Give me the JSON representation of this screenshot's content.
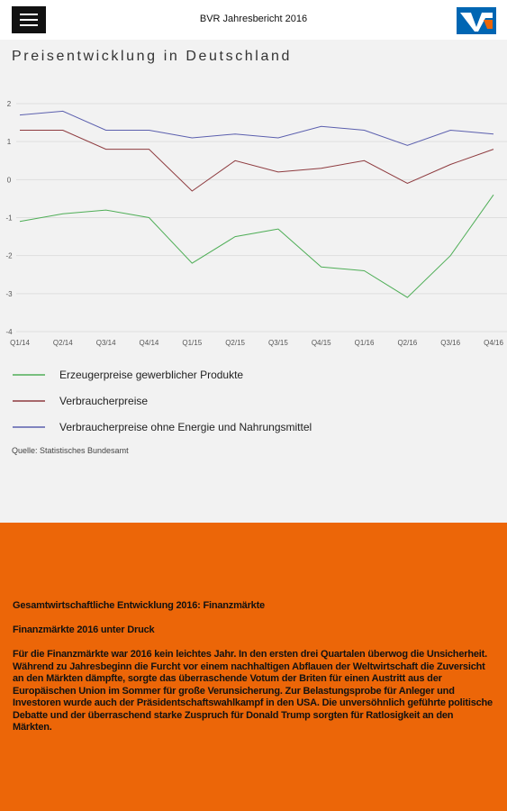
{
  "header": {
    "title": "BVR Jahresbericht 2016"
  },
  "chart_data": {
    "type": "line",
    "title": "Preisentwicklung in Deutschland",
    "categories": [
      "Q1/14",
      "Q2/14",
      "Q3/14",
      "Q4/14",
      "Q1/15",
      "Q2/15",
      "Q3/15",
      "Q4/15",
      "Q1/16",
      "Q2/16",
      "Q3/16",
      "Q4/16"
    ],
    "series": [
      {
        "name": "Erzeugerpreise gewerblicher Produkte",
        "color": "#4fae57",
        "values": [
          -1.1,
          -0.9,
          -0.8,
          -1.0,
          -2.2,
          -1.5,
          -1.3,
          -2.3,
          -2.4,
          -3.1,
          -2.0,
          -0.4
        ]
      },
      {
        "name": "Verbraucherpreise",
        "color": "#8e3b3f",
        "values": [
          1.3,
          1.3,
          0.8,
          0.8,
          -0.3,
          0.5,
          0.2,
          0.3,
          0.5,
          -0.1,
          0.4,
          0.8
        ]
      },
      {
        "name": "Verbraucherpreise ohne Energie und Nahrungsmittel",
        "color": "#5b5fae",
        "values": [
          1.7,
          1.8,
          1.3,
          1.3,
          1.1,
          1.2,
          1.1,
          1.4,
          1.3,
          0.9,
          1.3,
          1.2
        ]
      }
    ],
    "ylim": [
      -4,
      2
    ],
    "yticks": [
      -4,
      -3,
      -2,
      -1,
      0,
      1,
      2
    ],
    "grid": true,
    "source": "Quelle: Statistisches Bundesamt"
  },
  "article": {
    "heading": "Gesamtwirtschaftliche Entwicklung 2016: Finanzmärkte",
    "subheading": "Finanzmärkte 2016 unter Druck",
    "body": "Für die Finanzmärkte war 2016 kein leichtes Jahr. In den ersten drei Quartalen überwog die Unsicherheit. Während zu Jahresbeginn die Furcht vor einem nachhaltigen Abflauen der Weltwirtschaft die Zuversicht an den Märkten dämpfte, sorgte das überraschende Votum der Briten für einen Austritt aus der Europäischen Union im Sommer für große Verunsicherung. Zur Belastungsprobe für Anleger und Investoren wurde auch der Präsidentschaftswahlkampf in den USA. Die unversöhnlich geführte politische Debatte und der überraschend starke Zuspruch für Donald Trump sorgten für Ratlosigkeit an den Märkten."
  }
}
